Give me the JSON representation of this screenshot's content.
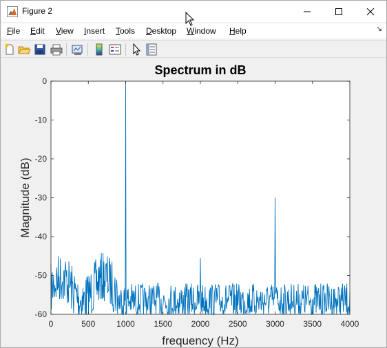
{
  "window": {
    "title": "Figure 2"
  },
  "menu": {
    "items": [
      {
        "label": "File"
      },
      {
        "label": "Edit"
      },
      {
        "label": "View"
      },
      {
        "label": "Insert"
      },
      {
        "label": "Tools"
      },
      {
        "label": "Desktop"
      },
      {
        "label": "Window"
      },
      {
        "label": "Help"
      }
    ]
  },
  "toolbar": {
    "buttons": [
      "new-figure-icon",
      "open-file-icon",
      "save-icon",
      "print-icon",
      "link-plot-icon",
      "insert-colorbar-icon",
      "insert-legend-icon",
      "edit-plot-pointer-icon",
      "property-inspector-icon"
    ]
  },
  "colors": {
    "line": "#0072bd",
    "axes_bg": "#ffffff",
    "figure_bg": "#f0f0f0"
  },
  "chart_data": {
    "type": "line",
    "title": "Spectrum in dB",
    "xlabel": "frequency (Hz)",
    "ylabel": "Magnitude (dB)",
    "xlim": [
      0,
      4000
    ],
    "ylim": [
      -60,
      0
    ],
    "xticks": [
      0,
      500,
      1000,
      1500,
      2000,
      2500,
      3000,
      3500,
      4000
    ],
    "yticks": [
      0,
      -10,
      -20,
      -30,
      -40,
      -50,
      -60
    ],
    "grid": false,
    "series": [
      {
        "peaks": [
          {
            "x": 1000,
            "y": 0
          },
          {
            "x": 2000,
            "y": -45.5
          },
          {
            "x": 3000,
            "y": -30
          }
        ],
        "noise_floor": {
          "x_range": [
            0,
            4000
          ],
          "y_range": [
            -60,
            -43
          ]
        }
      }
    ]
  }
}
